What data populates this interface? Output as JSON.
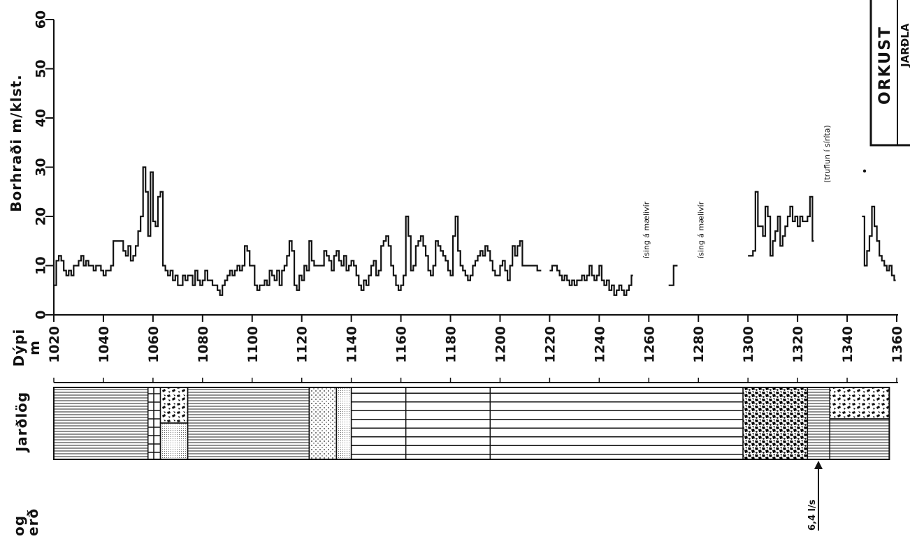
{
  "chart_data": {
    "type": "line",
    "ylabel": "Borhraði  m/klst.",
    "xlabel_line1": "Dýpi",
    "xlabel_line2": "m",
    "xlim": [
      1020,
      1360
    ],
    "ylim": [
      0,
      60
    ],
    "yticks": [
      0,
      10,
      20,
      30,
      40,
      50,
      60
    ],
    "xticks": [
      1020,
      1040,
      1060,
      1080,
      1100,
      1120,
      1140,
      1160,
      1180,
      1200,
      1220,
      1240,
      1260,
      1280,
      1300,
      1320,
      1340,
      1360
    ],
    "series": [
      {
        "x": [
          1020,
          1021,
          1022,
          1023,
          1024,
          1025,
          1026,
          1027,
          1028,
          1029,
          1030,
          1031,
          1032,
          1033,
          1034,
          1035,
          1036,
          1037,
          1038,
          1039,
          1040,
          1041,
          1042,
          1043,
          1044,
          1045,
          1046,
          1047,
          1048,
          1049,
          1050,
          1051,
          1052,
          1053,
          1054,
          1055,
          1056,
          1057,
          1058,
          1059,
          1060,
          1061,
          1062,
          1063,
          1064,
          1065,
          1066,
          1067,
          1068,
          1069,
          1070,
          1071,
          1072,
          1073,
          1074,
          1075,
          1076,
          1077,
          1078,
          1079,
          1080,
          1081,
          1082,
          1083,
          1084,
          1085,
          1086,
          1087,
          1088,
          1089,
          1090,
          1091,
          1092,
          1093,
          1094,
          1095,
          1096,
          1097,
          1098,
          1099,
          1100,
          1101,
          1102,
          1103,
          1104,
          1105,
          1106,
          1107,
          1108,
          1109,
          1110,
          1111,
          1112,
          1113,
          1114,
          1115,
          1116,
          1117,
          1118,
          1119,
          1120,
          1121,
          1122,
          1123,
          1124,
          1125,
          1126,
          1127,
          1128,
          1129,
          1130,
          1131,
          1132,
          1133,
          1134,
          1135,
          1136,
          1137,
          1138,
          1139,
          1140,
          1141,
          1142,
          1143,
          1144,
          1145,
          1146,
          1147,
          1148,
          1149,
          1150,
          1151,
          1152,
          1153,
          1154,
          1155,
          1156,
          1157,
          1158,
          1159,
          1160,
          1161,
          1162,
          1163,
          1164,
          1165,
          1166,
          1167,
          1168,
          1169,
          1170,
          1171,
          1172,
          1173,
          1174,
          1175,
          1176,
          1177,
          1178,
          1179,
          1180,
          1181,
          1182,
          1183,
          1184,
          1185,
          1186,
          1187,
          1188,
          1189,
          1190,
          1191,
          1192,
          1193,
          1194,
          1195,
          1196,
          1197,
          1198,
          1199,
          1200,
          1201,
          1202,
          1203,
          1204,
          1205,
          1206,
          1207,
          1208,
          1209,
          1210,
          1211,
          1212,
          1213,
          1214,
          1215,
          1216
        ],
        "y": [
          6,
          11,
          12,
          11,
          9,
          8,
          9,
          8,
          10,
          10,
          11,
          12,
          10,
          11,
          10,
          10,
          9,
          10,
          10,
          9,
          8,
          9,
          9,
          10,
          15,
          15,
          15,
          15,
          13,
          12,
          14,
          11,
          12,
          14,
          17,
          20,
          30,
          25,
          16,
          29,
          19,
          18,
          24,
          25,
          10,
          9,
          8,
          9,
          7,
          8,
          6,
          6,
          8,
          7,
          8,
          8,
          6,
          9,
          7,
          6,
          7,
          9,
          7,
          7,
          6,
          6,
          5,
          4,
          6,
          7,
          8,
          9,
          8,
          9,
          10,
          9,
          10,
          14,
          13,
          10,
          10,
          6,
          5,
          6,
          6,
          7,
          6,
          9,
          8,
          7,
          9,
          6,
          9,
          10,
          12,
          15,
          13,
          6,
          5,
          8,
          7,
          10,
          9,
          15,
          11,
          10,
          10,
          10,
          10,
          13,
          12,
          11,
          9,
          12,
          13,
          11,
          10,
          12,
          9,
          10,
          11,
          10,
          8,
          6,
          5,
          7,
          6,
          8,
          10,
          11,
          8,
          9,
          14,
          15,
          16,
          14,
          10,
          8,
          6,
          5,
          6,
          8,
          20,
          16,
          9,
          10,
          14,
          15,
          16,
          14,
          12,
          9,
          8,
          10,
          15,
          14,
          13,
          12,
          11,
          9,
          8,
          16,
          20,
          13,
          10,
          9,
          8,
          7,
          8,
          10,
          11,
          12,
          13,
          12,
          14,
          13,
          11,
          9,
          8,
          8,
          10,
          11,
          9,
          7,
          10,
          14,
          12,
          14,
          15,
          10,
          10,
          10,
          10,
          10,
          10,
          9,
          9
        ]
      },
      {
        "x": [
          1220,
          1221,
          1222,
          1223,
          1224,
          1225,
          1226,
          1227,
          1228,
          1229,
          1230,
          1231,
          1232,
          1233,
          1234,
          1235,
          1236,
          1237,
          1238,
          1239,
          1240,
          1241,
          1242,
          1243,
          1244,
          1245,
          1246,
          1247,
          1248,
          1249,
          1250,
          1251,
          1252,
          1253
        ],
        "y": [
          9,
          10,
          10,
          9,
          8,
          7,
          8,
          7,
          6,
          7,
          6,
          7,
          7,
          8,
          7,
          8,
          10,
          8,
          7,
          8,
          10,
          7,
          6,
          7,
          5,
          6,
          4,
          5,
          6,
          5,
          4,
          5,
          6,
          8
        ]
      },
      {
        "x": [
          1268,
          1269,
          1270,
          1271
        ],
        "y": [
          6,
          6,
          10,
          10
        ]
      },
      {
        "x": [
          1300,
          1301,
          1302,
          1303,
          1304,
          1305,
          1306,
          1307,
          1308,
          1309,
          1310,
          1311,
          1312,
          1313,
          1314,
          1315,
          1316,
          1317,
          1318,
          1319,
          1320,
          1321,
          1322,
          1323,
          1324,
          1325,
          1326
        ],
        "y": [
          12,
          12,
          13,
          25,
          18,
          18,
          16,
          22,
          20,
          12,
          15,
          17,
          20,
          14,
          16,
          18,
          20,
          22,
          19,
          20,
          18,
          20,
          19,
          19,
          20,
          24,
          15
        ]
      },
      {
        "x": [
          1346,
          1347,
          1348,
          1349,
          1350,
          1351,
          1352,
          1353,
          1354,
          1355,
          1356,
          1357,
          1358,
          1359
        ],
        "y": [
          20,
          10,
          13,
          16,
          22,
          18,
          15,
          12,
          11,
          10,
          9,
          10,
          8,
          7
        ]
      }
    ],
    "annotations": [
      {
        "text": "ísing á mælivír",
        "at_x": 1260
      },
      {
        "text": "ísing á   mælivír",
        "at_x": 1282
      },
      {
        "text": "(truflun í síríta)",
        "at_x": 1333
      },
      {
        "text": "6,4 l/s",
        "at_x": 1327
      }
    ],
    "lithology": {
      "title": "Jarðlög",
      "segments": [
        {
          "from": 1020,
          "to": 1058,
          "pattern": "horiz-lines"
        },
        {
          "from": 1058,
          "to": 1063,
          "pattern": "bricks"
        },
        {
          "from": 1063,
          "to": 1074,
          "pattern": "breccia-over-dots"
        },
        {
          "from": 1074,
          "to": 1123,
          "pattern": "horiz-lines"
        },
        {
          "from": 1123,
          "to": 1134,
          "pattern": "dots"
        },
        {
          "from": 1134,
          "to": 1140,
          "pattern": "fine-dots"
        },
        {
          "from": 1140,
          "to": 1298,
          "pattern": "wide-layers"
        },
        {
          "from": 1298,
          "to": 1324,
          "pattern": "dense-breccia"
        },
        {
          "from": 1324,
          "to": 1333,
          "pattern": "horiz-lines"
        },
        {
          "from": 1333,
          "to": 1357,
          "pattern": "breccia-over-lines"
        }
      ]
    },
    "bottom_label_line1": "og",
    "bottom_label_line2": "erð",
    "box_title": "ORKUST",
    "box_subtitle": "JARÐLA"
  }
}
